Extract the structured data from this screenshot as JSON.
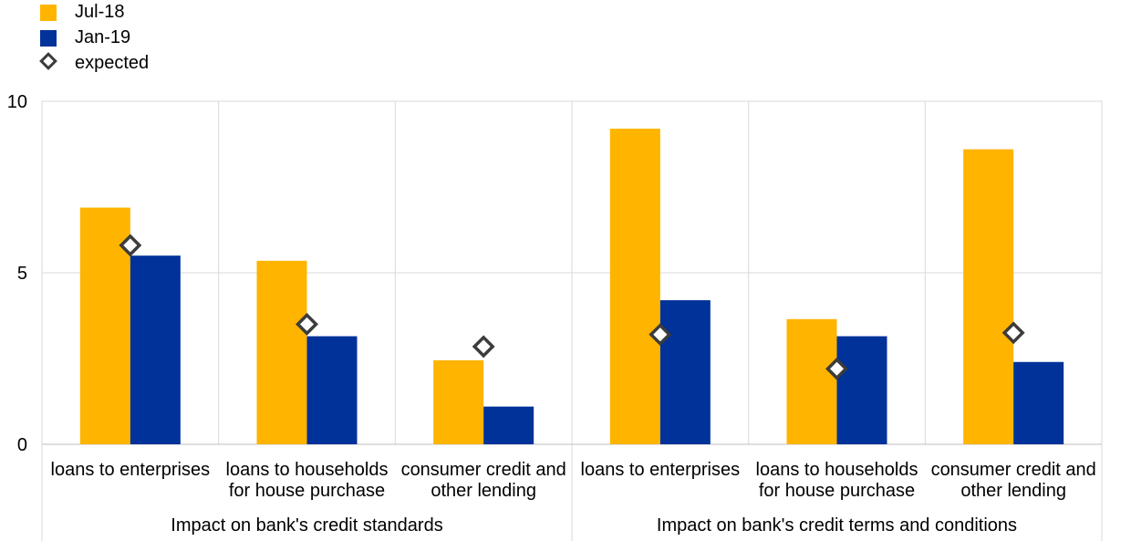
{
  "legend": {
    "items": [
      {
        "label": "Jul-18",
        "color": "#FFB400",
        "shape": "square"
      },
      {
        "label": "Jan-19",
        "color": "#003299",
        "shape": "square"
      },
      {
        "label": "expected",
        "color": "#3c3c3c",
        "shape": "diamond"
      }
    ]
  },
  "chart_data": {
    "type": "bar",
    "ylim": [
      0,
      10
    ],
    "yticks": [
      0,
      5,
      10
    ],
    "grid": true,
    "legend_position": "top-left",
    "groups": [
      "Impact on bank's credit standards",
      "Impact on bank's credit terms and conditions"
    ],
    "categories": [
      {
        "lines": [
          "loans to enterprises"
        ],
        "group": 0
      },
      {
        "lines": [
          "loans to households",
          "for house purchase"
        ],
        "group": 0
      },
      {
        "lines": [
          "consumer credit and",
          "other lending"
        ],
        "group": 0
      },
      {
        "lines": [
          "loans to enterprises"
        ],
        "group": 1
      },
      {
        "lines": [
          "loans to households",
          "for house purchase"
        ],
        "group": 1
      },
      {
        "lines": [
          "consumer credit and",
          "other lending"
        ],
        "group": 1
      }
    ],
    "series": [
      {
        "name": "Jul-18",
        "color": "#FFB400",
        "values": [
          6.9,
          5.35,
          2.45,
          9.2,
          3.65,
          8.6
        ]
      },
      {
        "name": "Jan-19",
        "color": "#003299",
        "values": [
          5.5,
          3.15,
          1.1,
          4.2,
          3.15,
          2.4
        ]
      }
    ],
    "markers": {
      "name": "expected",
      "values": [
        5.8,
        3.5,
        2.85,
        3.2,
        2.2,
        3.25
      ]
    }
  }
}
